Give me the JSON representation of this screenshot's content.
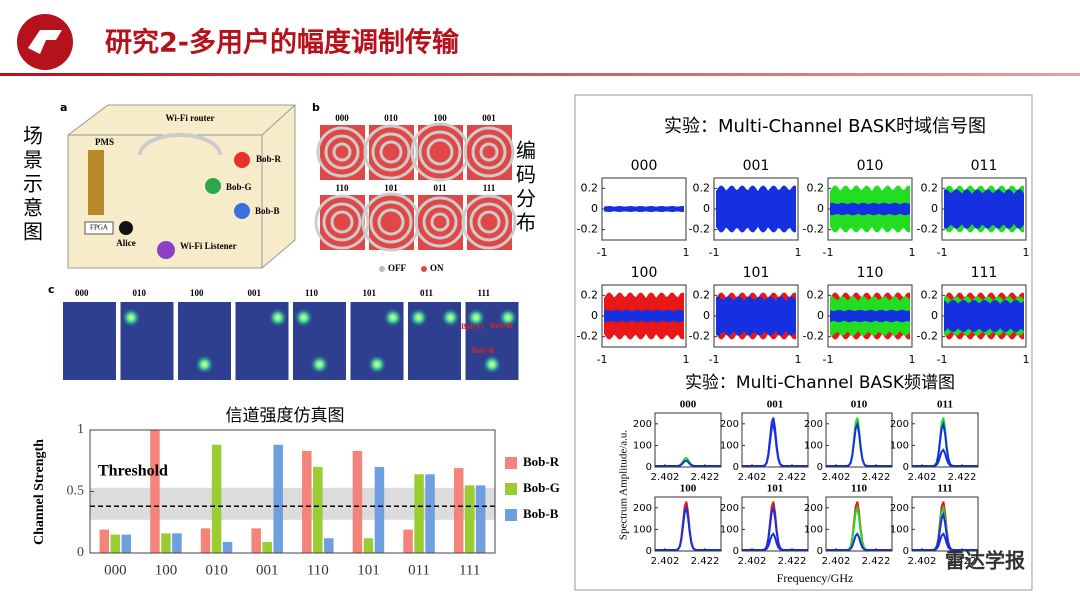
{
  "header": {
    "title": "研究2-多用户的幅度调制传输"
  },
  "scene": {
    "side_label": "场景示意图",
    "panel": "a",
    "router": "Wi-Fi router",
    "pms": "PMS",
    "bobs": [
      "Bob-R",
      "Bob-G",
      "Bob-B"
    ],
    "fpga": "FPGA",
    "alice": "Alice",
    "listener": "Wi-Fi Listener"
  },
  "coding": {
    "panel": "b",
    "side_label": "编码分布",
    "codes": [
      "000",
      "010",
      "100",
      "001",
      "110",
      "101",
      "011",
      "111"
    ],
    "legend": [
      "OFF",
      "ON"
    ]
  },
  "channel": {
    "panel": "c",
    "codes": [
      "000",
      "010",
      "100",
      "001",
      "110",
      "101",
      "011",
      "111"
    ],
    "labels": [
      "Bob-G",
      "Bob-R",
      "Bob-B"
    ]
  },
  "chart_data": {
    "type": "bar",
    "title": "信道强度仿真图",
    "y_label": "Channel Strength",
    "categories": [
      "000",
      "100",
      "010",
      "001",
      "110",
      "101",
      "011",
      "111"
    ],
    "series": [
      {
        "name": "Bob-R",
        "color": "#f4837a",
        "values": [
          0.19,
          1.0,
          0.2,
          0.2,
          0.83,
          0.83,
          0.19,
          0.69
        ]
      },
      {
        "name": "Bob-G",
        "color": "#9acd32",
        "values": [
          0.15,
          0.16,
          0.88,
          0.09,
          0.7,
          0.12,
          0.64,
          0.55
        ]
      },
      {
        "name": "Bob-B",
        "color": "#6f9fe0",
        "values": [
          0.15,
          0.16,
          0.09,
          0.88,
          0.12,
          0.7,
          0.64,
          0.55
        ]
      }
    ],
    "ylim": [
      0,
      1
    ],
    "yticks": [
      0,
      0.5,
      1
    ],
    "threshold_label": "Threshold",
    "threshold": 0.38,
    "threshold_band": [
      0.27,
      0.53
    ],
    "legend": "right"
  },
  "time_plots": {
    "title": "实验：Multi-Channel BASK时域信号图",
    "codes": [
      "000",
      "001",
      "010",
      "011",
      "100",
      "101",
      "110",
      "111"
    ],
    "ylim": [
      -0.3,
      0.3
    ],
    "yticks": [
      0.2,
      0,
      -0.2
    ],
    "xlim": [
      -1,
      1
    ],
    "xticks": [
      -1,
      1
    ]
  },
  "spectrum_plots": {
    "title": "实验：Multi-Channel BASK频谱图",
    "codes": [
      "000",
      "001",
      "010",
      "011",
      "100",
      "101",
      "110",
      "111"
    ],
    "ylim": [
      0,
      250
    ],
    "yticks": [
      0,
      100,
      200
    ],
    "xlim": [
      2.397,
      2.43
    ],
    "xticks": [
      2.402,
      2.422
    ],
    "ylabel": "Spectrum Amplitude/a.u.",
    "xlabel": "Frequency/GHz"
  },
  "watermark": "雷达学报"
}
